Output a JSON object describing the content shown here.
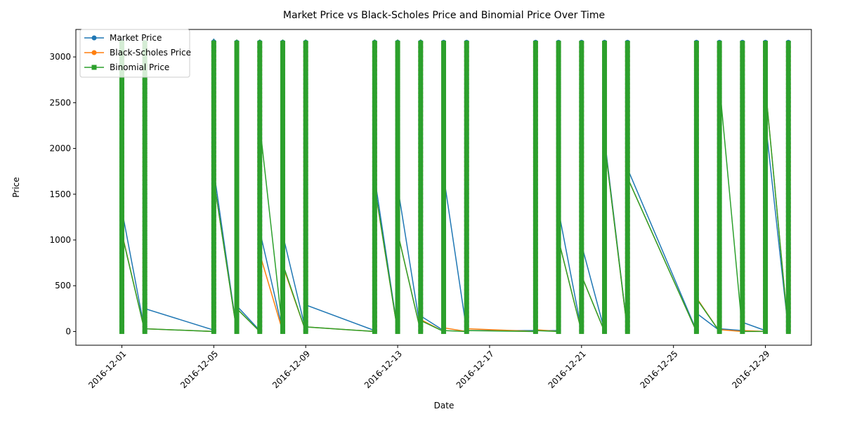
{
  "chart_data": {
    "type": "line",
    "title": "Market Price vs Black-Scholes Price and Binomial Price Over Time",
    "xlabel": "Date",
    "ylabel": "Price",
    "xlim": [
      "2016-11-29",
      "2016-12-31"
    ],
    "ylim": [
      -150,
      3300
    ],
    "x_ticks": [
      "2016-12-01",
      "2016-12-05",
      "2016-12-09",
      "2016-12-13",
      "2016-12-17",
      "2016-12-21",
      "2016-12-25",
      "2016-12-29"
    ],
    "y_ticks": [
      0,
      500,
      1000,
      1500,
      2000,
      2500,
      3000
    ],
    "grid": false,
    "legend": "top-left",
    "dates": [
      "2016-12-01",
      "2016-12-02",
      "2016-12-05",
      "2016-12-06",
      "2016-12-07",
      "2016-12-08",
      "2016-12-09",
      "2016-12-12",
      "2016-12-13",
      "2016-12-14",
      "2016-12-15",
      "2016-12-16",
      "2016-12-19",
      "2016-12-20",
      "2016-12-21",
      "2016-12-22",
      "2016-12-23",
      "2016-12-26",
      "2016-12-27",
      "2016-12-28",
      "2016-12-29",
      "2016-12-30"
    ],
    "series": [
      {
        "name": "Market Price",
        "color": "#1f77b4",
        "marker": "circle",
        "max_values": [
          3200,
          3180,
          3200,
          3180,
          3180,
          3180,
          3180,
          3180,
          3180,
          3180,
          3180,
          3180,
          3180,
          3180,
          3180,
          3180,
          3170,
          3170,
          3170,
          3170,
          3170,
          3170
        ],
        "first_values": [
          10,
          5,
          15,
          10,
          10,
          10,
          10,
          10,
          10,
          10,
          10,
          10,
          10,
          10,
          10,
          10,
          10,
          10,
          10,
          10,
          10,
          10
        ],
        "last_values": [
          1330,
          250,
          1760,
          280,
          1100,
          1060,
          290,
          1680,
          1580,
          170,
          1700,
          10,
          10,
          1320,
          950,
          2110,
          1780,
          200,
          30,
          100,
          2300,
          990
        ]
      },
      {
        "name": "Black-Scholes Price",
        "color": "#ff7f0e",
        "marker": "circle",
        "max_values": [
          3150,
          3150,
          3150,
          3150,
          3150,
          3150,
          3150,
          3150,
          3150,
          3150,
          3150,
          3150,
          3150,
          3150,
          3150,
          3150,
          3100,
          3100,
          3100,
          3100,
          3100,
          3100
        ],
        "first_values": [
          0,
          0,
          0,
          0,
          0,
          0,
          0,
          0,
          0,
          0,
          0,
          0,
          0,
          0,
          0,
          0,
          0,
          0,
          0,
          0,
          0,
          0
        ],
        "last_values": [
          1080,
          30,
          1660,
          250,
          850,
          720,
          50,
          1580,
          1080,
          130,
          40,
          30,
          20,
          1000,
          610,
          2070,
          1680,
          370,
          20,
          10,
          2670,
          990
        ]
      },
      {
        "name": "Binomial Price",
        "color": "#2ca02c",
        "marker": "square",
        "max_values": [
          3190,
          3190,
          3190,
          3190,
          3190,
          3190,
          3190,
          3190,
          3190,
          3190,
          3180,
          3180,
          3180,
          3180,
          3180,
          3180,
          3170,
          3170,
          3170,
          3170,
          3170,
          3170
        ],
        "first_values": [
          0,
          0,
          0,
          0,
          0,
          0,
          0,
          0,
          0,
          0,
          0,
          0,
          0,
          0,
          0,
          0,
          0,
          0,
          0,
          0,
          0,
          0
        ],
        "last_values": [
          1070,
          30,
          1660,
          250,
          2260,
          740,
          50,
          1590,
          1080,
          120,
          10,
          10,
          10,
          1000,
          610,
          2070,
          1680,
          360,
          2700,
          0,
          2670,
          990
        ]
      }
    ]
  }
}
